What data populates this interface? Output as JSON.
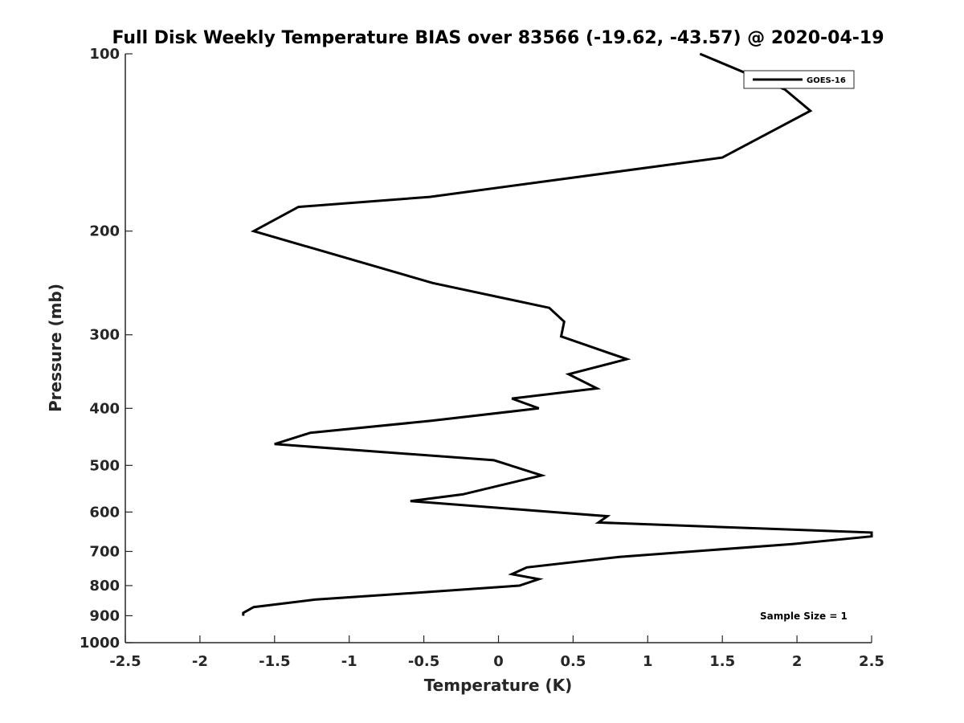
{
  "chart_data": {
    "type": "line",
    "title": "Full Disk Weekly Temperature BIAS over 83566 (-19.62, -43.57) @ 2020-04-19",
    "xlabel": "Temperature (K)",
    "ylabel": "Pressure (mb)",
    "xlim": [
      -2.5,
      2.5
    ],
    "ylim": [
      100,
      1000
    ],
    "y_scale": "log",
    "y_reversed": true,
    "xticks": [
      -2.5,
      -2,
      -1.5,
      -1,
      -0.5,
      0,
      0.5,
      1,
      1.5,
      2,
      2.5
    ],
    "xtick_labels": [
      "-2.5",
      "-2",
      "-1.5",
      "-1",
      "-0.5",
      "0",
      "0.5",
      "1",
      "1.5",
      "2",
      "2.5"
    ],
    "yticks": [
      100,
      200,
      300,
      400,
      500,
      600,
      700,
      800,
      900,
      1000
    ],
    "ytick_labels": [
      "100",
      "200",
      "300",
      "400",
      "500",
      "600",
      "700",
      "800",
      "900",
      "1000"
    ],
    "grid": false,
    "legend_position": "top-right",
    "annotation": "Sample Size = 1",
    "series": [
      {
        "name": "GOES-16",
        "color": "#000000",
        "x": [
          1.35,
          1.92,
          2.09,
          1.5,
          -0.46,
          -1.34,
          -1.64,
          -0.44,
          0.34,
          0.44,
          0.42,
          0.86,
          0.47,
          0.66,
          0.09,
          0.27,
          -0.45,
          -1.26,
          -1.5,
          -0.03,
          0.29,
          -0.24,
          -0.59,
          0.73,
          0.67,
          2.5,
          2.5,
          1.97,
          0.81,
          0.19,
          0.09,
          0.27,
          0.14,
          -0.46,
          -1.23,
          -1.64,
          -1.71,
          -1.71
        ],
        "y": [
          100,
          115,
          125,
          150,
          175,
          182,
          200,
          245,
          270,
          285,
          302,
          330,
          350,
          370,
          385,
          400,
          420,
          440,
          460,
          490,
          520,
          560,
          575,
          610,
          625,
          650,
          660,
          680,
          715,
          745,
          765,
          780,
          800,
          820,
          845,
          870,
          890,
          900
        ]
      }
    ]
  }
}
